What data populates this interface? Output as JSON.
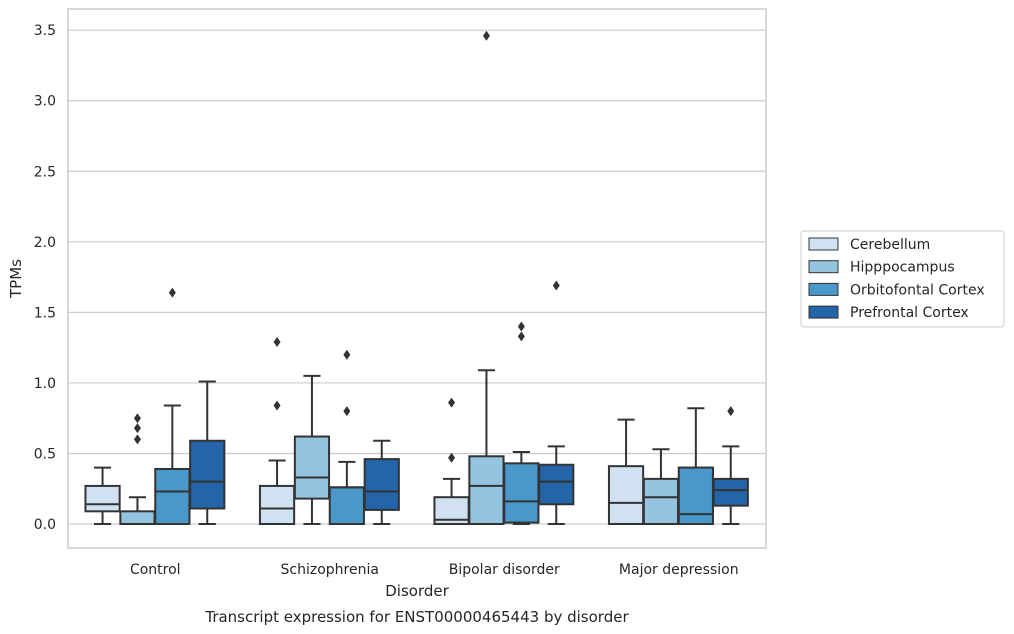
{
  "chart_data": {
    "type": "box",
    "title": "Transcript expression for ENST00000465443 by disorder",
    "xlabel": "Disorder",
    "ylabel": "TPMs",
    "ylim": [
      -0.17,
      3.65
    ],
    "yticks": [
      0.0,
      0.5,
      1.0,
      1.5,
      2.0,
      2.5,
      3.0,
      3.5
    ],
    "ytick_labels": [
      "0.0",
      "0.5",
      "1.0",
      "1.5",
      "2.0",
      "2.5",
      "3.0",
      "3.5"
    ],
    "grid": true,
    "legend_position": "right",
    "categories": [
      "Control",
      "Schizophrenia",
      "Bipolar disorder",
      "Major depression"
    ],
    "series": [
      {
        "name": "Cerebellum",
        "color": "#d0e1f2",
        "boxes": [
          {
            "whisker_low": 0.0,
            "q1": 0.09,
            "median": 0.14,
            "q3": 0.27,
            "whisker_high": 0.4,
            "outliers": []
          },
          {
            "whisker_low": 0.0,
            "q1": 0.0,
            "median": 0.11,
            "q3": 0.27,
            "whisker_high": 0.45,
            "outliers": [
              0.84,
              1.29
            ]
          },
          {
            "whisker_low": 0.0,
            "q1": 0.0,
            "median": 0.03,
            "q3": 0.19,
            "whisker_high": 0.32,
            "outliers": [
              0.47,
              0.86
            ]
          },
          {
            "whisker_low": 0.0,
            "q1": 0.0,
            "median": 0.15,
            "q3": 0.41,
            "whisker_high": 0.74,
            "outliers": []
          }
        ]
      },
      {
        "name": "Hipppocampus",
        "color": "#94c4df",
        "boxes": [
          {
            "whisker_low": 0.0,
            "q1": 0.0,
            "median": 0.0,
            "q3": 0.09,
            "whisker_high": 0.19,
            "outliers": [
              0.6,
              0.68,
              0.75
            ]
          },
          {
            "whisker_low": 0.0,
            "q1": 0.18,
            "median": 0.33,
            "q3": 0.62,
            "whisker_high": 1.05,
            "outliers": []
          },
          {
            "whisker_low": 0.0,
            "q1": 0.0,
            "median": 0.27,
            "q3": 0.48,
            "whisker_high": 1.09,
            "outliers": [
              3.46
            ]
          },
          {
            "whisker_low": 0.0,
            "q1": 0.0,
            "median": 0.19,
            "q3": 0.32,
            "whisker_high": 0.53,
            "outliers": []
          }
        ]
      },
      {
        "name": "Orbitofontal Cortex",
        "color": "#4a98c9",
        "boxes": [
          {
            "whisker_low": 0.0,
            "q1": 0.0,
            "median": 0.23,
            "q3": 0.39,
            "whisker_high": 0.84,
            "outliers": [
              1.64
            ]
          },
          {
            "whisker_low": 0.0,
            "q1": 0.0,
            "median": 0.26,
            "q3": 0.26,
            "whisker_high": 0.44,
            "outliers": [
              0.8,
              1.2
            ]
          },
          {
            "whisker_low": 0.0,
            "q1": 0.01,
            "median": 0.16,
            "q3": 0.43,
            "whisker_high": 0.51,
            "outliers": [
              1.33,
              1.4
            ]
          },
          {
            "whisker_low": 0.0,
            "q1": 0.0,
            "median": 0.07,
            "q3": 0.4,
            "whisker_high": 0.82,
            "outliers": []
          }
        ]
      },
      {
        "name": "Prefrontal Cortex",
        "color": "#2464a8",
        "boxes": [
          {
            "whisker_low": 0.0,
            "q1": 0.11,
            "median": 0.3,
            "q3": 0.59,
            "whisker_high": 1.01,
            "outliers": []
          },
          {
            "whisker_low": 0.0,
            "q1": 0.1,
            "median": 0.23,
            "q3": 0.46,
            "whisker_high": 0.59,
            "outliers": []
          },
          {
            "whisker_low": 0.0,
            "q1": 0.14,
            "median": 0.3,
            "q3": 0.42,
            "whisker_high": 0.55,
            "outliers": [
              1.69
            ]
          },
          {
            "whisker_low": 0.0,
            "q1": 0.13,
            "median": 0.24,
            "q3": 0.32,
            "whisker_high": 0.55,
            "outliers": [
              0.8
            ]
          }
        ]
      }
    ]
  }
}
